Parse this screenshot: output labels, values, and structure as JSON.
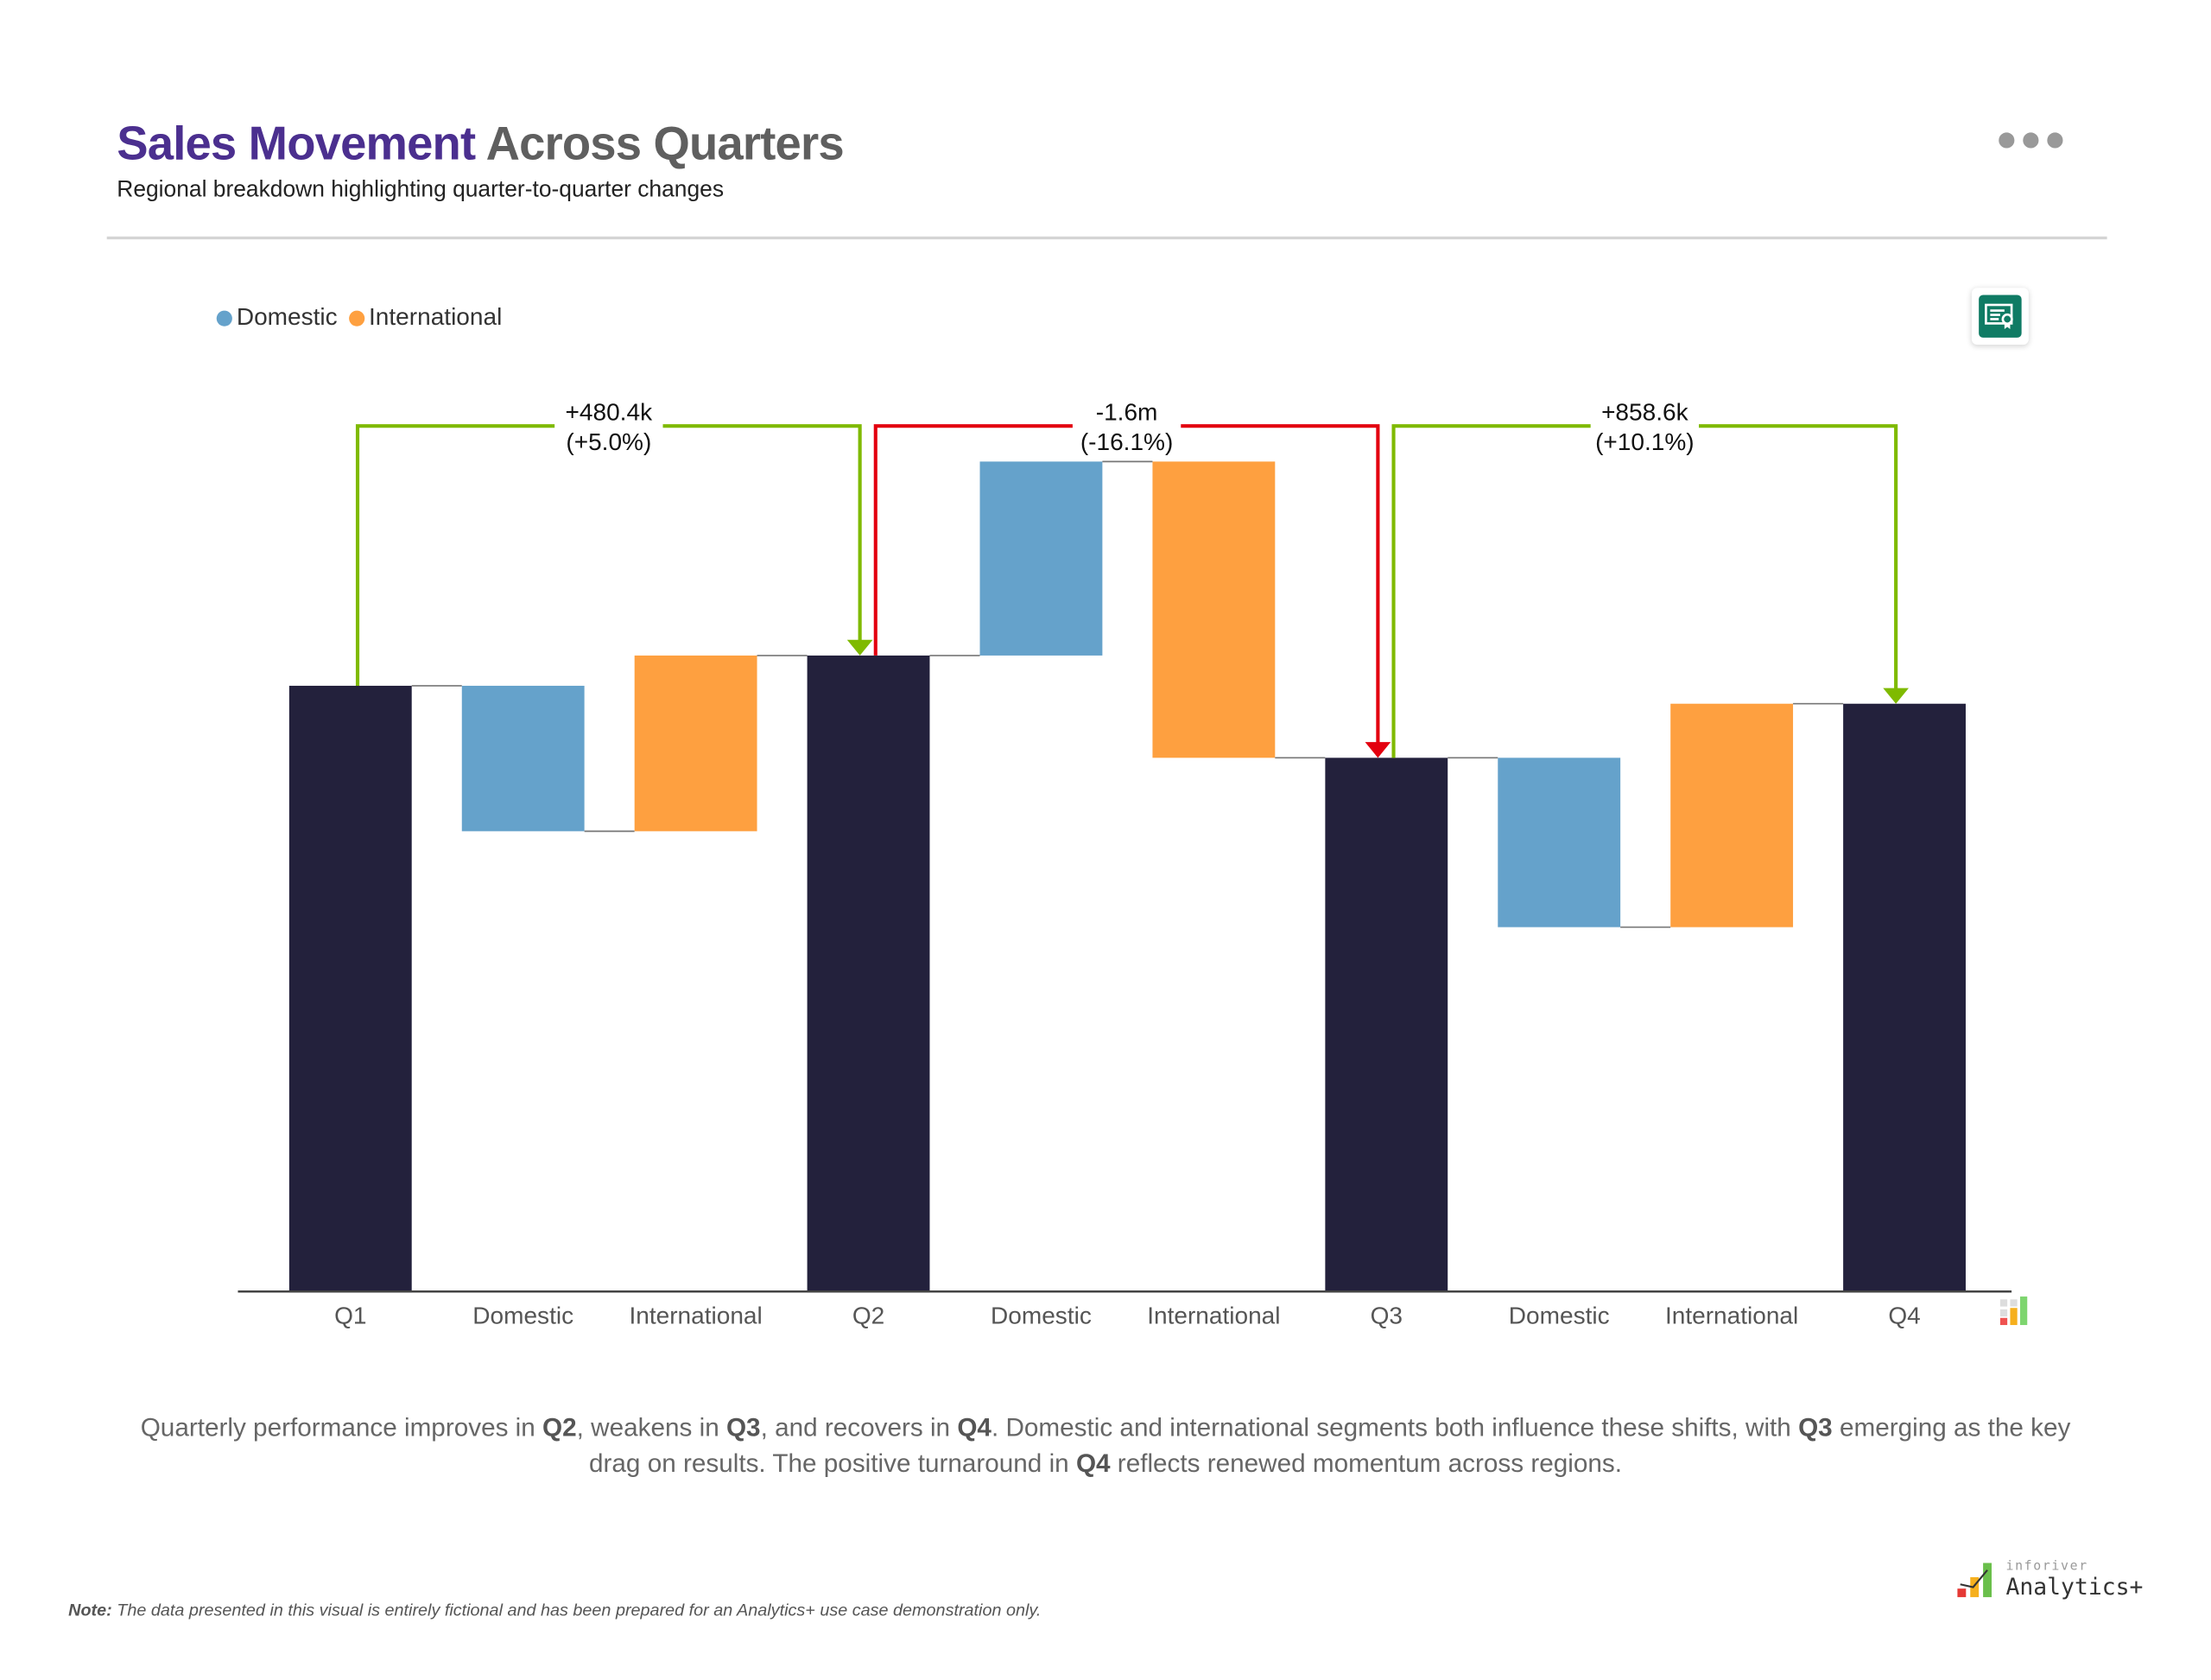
{
  "header": {
    "title_accent": "Sales Movement",
    "title_rest": "Across Quarters",
    "subtitle": "Regional breakdown highlighting quarter-to-quarter changes",
    "more_icon": "more-horizontal-icon",
    "badge_icon": "certificate-icon"
  },
  "colors": {
    "total": "#23213c",
    "domestic": "#65a2cb",
    "international": "#fea040",
    "positive": "#7fba00",
    "negative": "#e3000f",
    "title_accent": "#4b2f8f"
  },
  "chart_data": {
    "type": "waterfall",
    "title": "",
    "xlabel": "",
    "ylabel": "",
    "grid": false,
    "legend_position": "top-left",
    "legend": [
      "Domestic",
      "International"
    ],
    "categories": [
      "Q1",
      "Domestic",
      "International",
      "Q2",
      "Domestic",
      "International",
      "Q3",
      "Domestic",
      "International",
      "Q4"
    ],
    "kinds": [
      "total",
      "domestic",
      "international",
      "total",
      "domestic",
      "international",
      "total",
      "domestic",
      "international",
      "total"
    ],
    "values_millions": [
      9.608,
      -2.31,
      2.7904,
      10.0884,
      3.08,
      -4.704,
      8.4644,
      -2.69,
      3.5486,
      9.323
    ],
    "ylim": [
      0,
      13
    ],
    "comparisons": [
      {
        "from": "Q1",
        "to": "Q2",
        "delta": "+480.4k",
        "percent": "(+5.0%)",
        "direction": "positive"
      },
      {
        "from": "Q2",
        "to": "Q3",
        "delta": "-1.6m",
        "percent": "(-16.1%)",
        "direction": "negative"
      },
      {
        "from": "Q3",
        "to": "Q4",
        "delta": "+858.6k",
        "percent": "(+10.1%)",
        "direction": "positive"
      }
    ]
  },
  "summary": {
    "parts": [
      "Quarterly performance improves in ",
      "Q2",
      ", weakens in ",
      "Q3",
      ", and recovers in ",
      "Q4",
      ". Domestic and international segments both influence these shifts, with ",
      "Q3",
      " emerging as the key drag on results. The positive turnaround in ",
      "Q4",
      " reflects renewed momentum across regions."
    ]
  },
  "note": {
    "label": "Note:",
    "text": " The data presented in this visual is entirely fictional and has been prepared for an Analytics+ use case demonstration only."
  },
  "logo": {
    "brand": "inforiver",
    "product": "Analytics+"
  }
}
